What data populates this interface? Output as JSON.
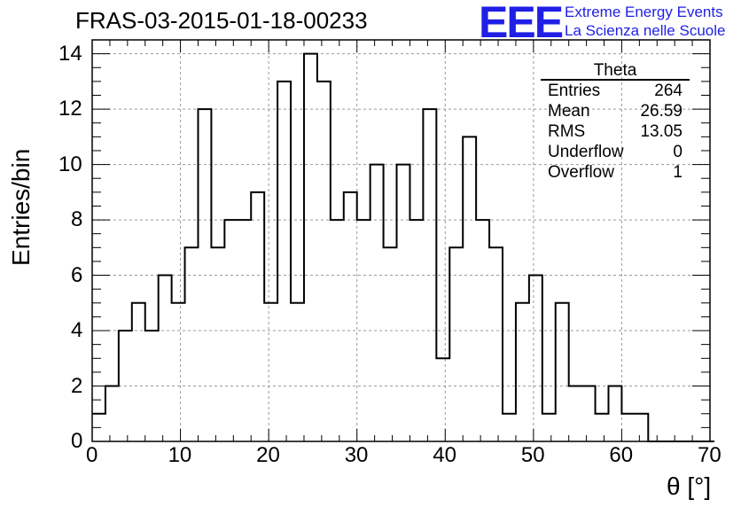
{
  "title": "FRAS-03-2015-01-18-00233",
  "logo": {
    "mark": "EEE",
    "line1": "Extreme Energy Events",
    "line2": "La Scienza nelle Scuole",
    "color": "#1f1fe6"
  },
  "stats": {
    "name": "Theta",
    "rows": [
      {
        "label": "Entries",
        "value": "264"
      },
      {
        "label": "Mean",
        "value": "26.59"
      },
      {
        "label": "RMS",
        "value": "13.05"
      },
      {
        "label": "Underflow",
        "value": "0"
      },
      {
        "label": "Overflow",
        "value": "1"
      }
    ]
  },
  "chart_data": {
    "type": "bar",
    "title": "FRAS-03-2015-01-18-00233",
    "xlabel": "θ [°]",
    "ylabel": "Entries/bin",
    "xlim": [
      0,
      70
    ],
    "ylim": [
      0,
      14.5
    ],
    "grid": true,
    "bin_width": 1.5,
    "bin_start": 0,
    "values": [
      1,
      2,
      4,
      5,
      4,
      6,
      5,
      7,
      12,
      7,
      8,
      8,
      9,
      5,
      13,
      5,
      14,
      13,
      8,
      9,
      8,
      10,
      7,
      10,
      8,
      12,
      3,
      7,
      11,
      8,
      7,
      1,
      5,
      6,
      1,
      5,
      2,
      2,
      1,
      2,
      1,
      1,
      0,
      0,
      0,
      0,
      0
    ],
    "x_ticks": [
      "0",
      "10",
      "20",
      "30",
      "40",
      "50",
      "60",
      "70"
    ],
    "y_ticks": [
      "0",
      "2",
      "4",
      "6",
      "8",
      "10",
      "12",
      "14"
    ]
  }
}
